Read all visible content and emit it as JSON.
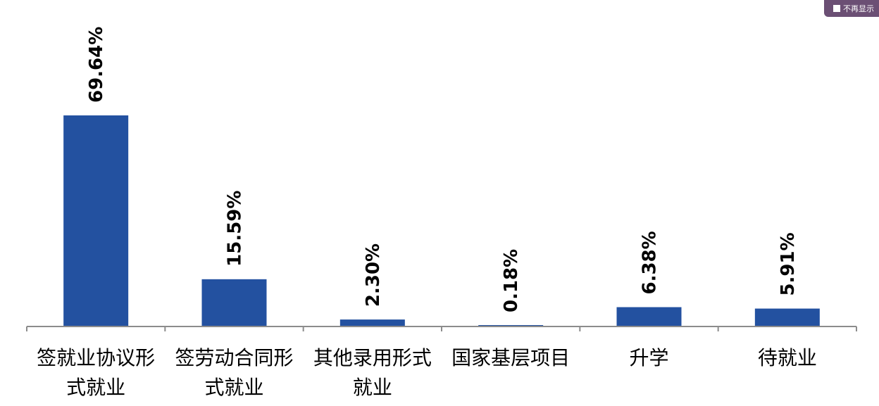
{
  "toolbar": {
    "hide_label": "不再显示"
  },
  "colors": {
    "bar": "#2351a0",
    "axis": "#8c8c8c"
  },
  "chart_data": {
    "type": "bar",
    "categories": [
      [
        "签就业协议形",
        "式就业"
      ],
      [
        "签劳动合同形",
        "式就业"
      ],
      [
        "其他录用形式",
        "就业"
      ],
      [
        "国家基层项目"
      ],
      [
        "升学"
      ],
      [
        "待就业"
      ]
    ],
    "values": [
      69.64,
      15.59,
      2.3,
      0.18,
      6.38,
      5.91
    ],
    "data_labels": [
      "69.64%",
      "15.59%",
      "2.30%",
      "0.18%",
      "6.38%",
      "5.91%"
    ],
    "ylim": [
      0,
      69.64
    ],
    "grid": false,
    "legend": "none"
  }
}
